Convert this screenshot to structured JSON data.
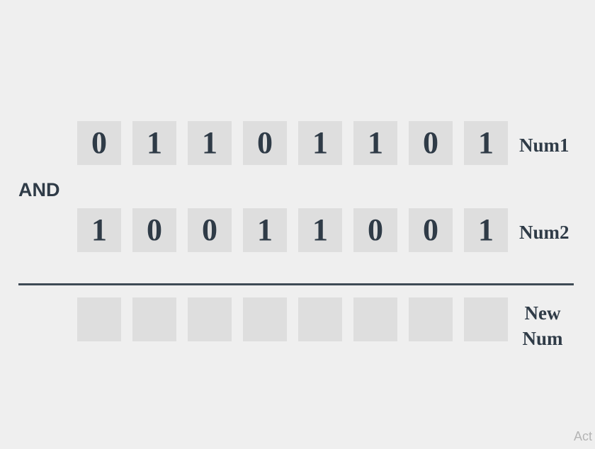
{
  "operator": "AND",
  "rows": [
    {
      "label": "Num1",
      "bits": [
        "0",
        "1",
        "1",
        "0",
        "1",
        "1",
        "0",
        "1"
      ]
    },
    {
      "label": "Num2",
      "bits": [
        "1",
        "0",
        "0",
        "1",
        "1",
        "0",
        "0",
        "1"
      ]
    },
    {
      "label_line1": "New",
      "label_line2": "Num",
      "bits": [
        "",
        "",
        "",
        "",
        "",
        "",
        "",
        ""
      ]
    }
  ],
  "watermark": "Act"
}
